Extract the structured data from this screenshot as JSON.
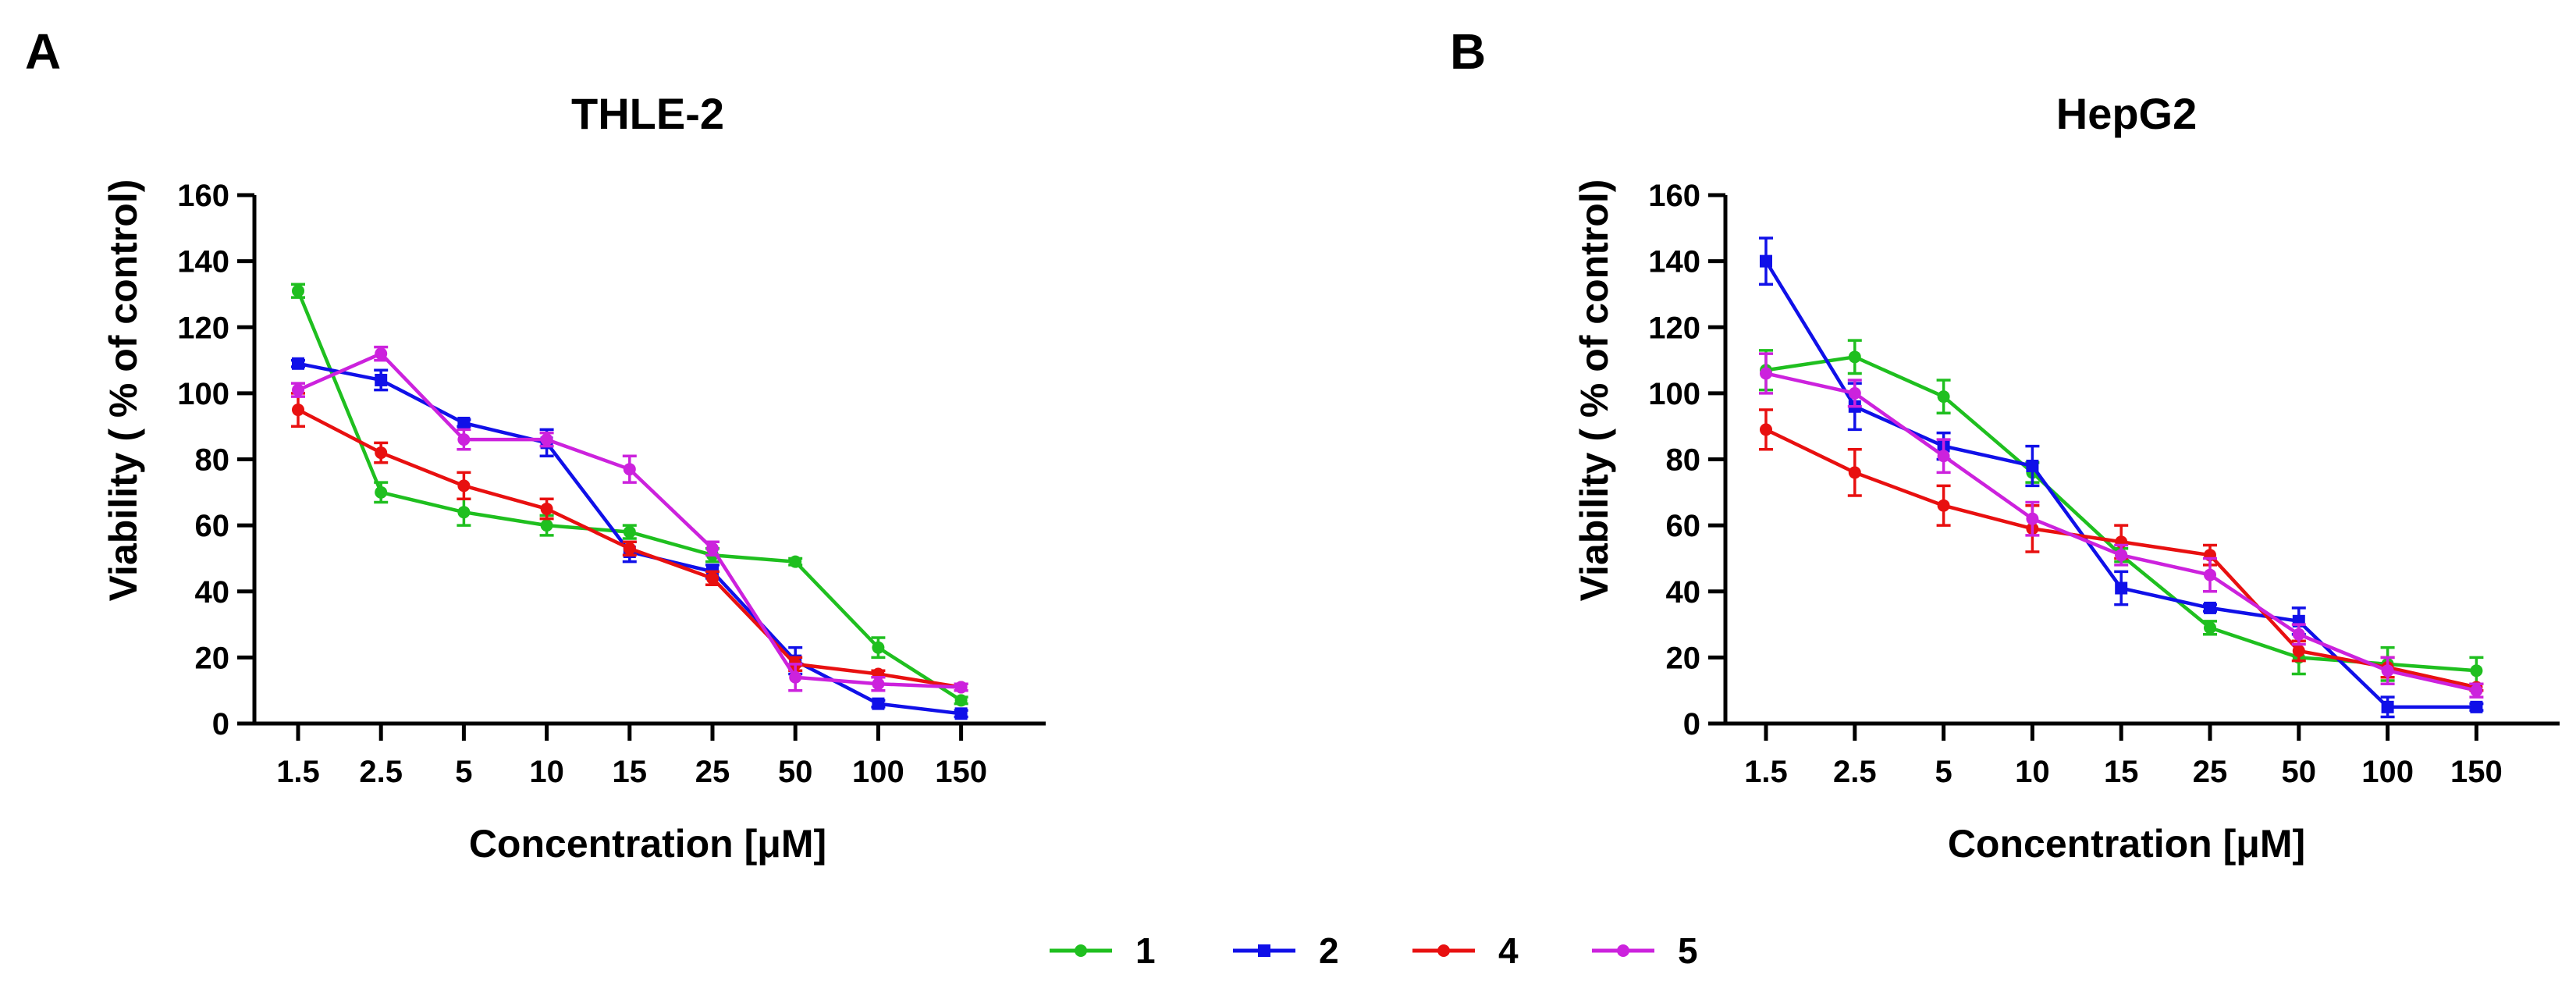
{
  "panels": [
    "A",
    "B"
  ],
  "legend": [
    {
      "label": "1",
      "color": "#1fbf1f",
      "marker": "circle"
    },
    {
      "label": "2",
      "color": "#1010e8",
      "marker": "square"
    },
    {
      "label": "4",
      "color": "#e81010",
      "marker": "circle"
    },
    {
      "label": "5",
      "color": "#cc22dd",
      "marker": "circle"
    }
  ],
  "chart_data": [
    {
      "type": "line",
      "title": "THLE-2",
      "xlabel": "Concentration [μM]",
      "ylabel": "Viability ( % of control)",
      "categories": [
        "1.5",
        "2.5",
        "5",
        "10",
        "15",
        "25",
        "50",
        "100",
        "150"
      ],
      "ylim": [
        0,
        160
      ],
      "yticks": [
        0,
        20,
        40,
        60,
        80,
        100,
        120,
        140,
        160
      ],
      "grid": false,
      "series": [
        {
          "name": "1",
          "color": "#1fbf1f",
          "values": [
            131,
            70,
            64,
            60,
            58,
            51,
            49,
            23,
            7
          ],
          "errors": [
            2,
            3,
            4,
            3,
            2,
            2,
            1,
            3,
            1
          ]
        },
        {
          "name": "2",
          "color": "#1010e8",
          "values": [
            109,
            104,
            91,
            85,
            52,
            46,
            19,
            6,
            3
          ],
          "errors": [
            1,
            3,
            1,
            4,
            3,
            2,
            4,
            1,
            1
          ]
        },
        {
          "name": "4",
          "color": "#e81010",
          "values": [
            95,
            82,
            72,
            65,
            53,
            44,
            18,
            15,
            11
          ],
          "errors": [
            5,
            3,
            4,
            3,
            2,
            2,
            2,
            1,
            1
          ]
        },
        {
          "name": "5",
          "color": "#cc22dd",
          "values": [
            101,
            112,
            86,
            86,
            77,
            53,
            14,
            12,
            11
          ],
          "errors": [
            2,
            2,
            3,
            2,
            4,
            2,
            4,
            2,
            1
          ]
        }
      ]
    },
    {
      "type": "line",
      "title": "HepG2",
      "xlabel": "Concentration [μM]",
      "ylabel": "Viability ( % of control)",
      "categories": [
        "1.5",
        "2.5",
        "5",
        "10",
        "15",
        "25",
        "50",
        "100",
        "150"
      ],
      "ylim": [
        0,
        160
      ],
      "yticks": [
        0,
        20,
        40,
        60,
        80,
        100,
        120,
        140,
        160
      ],
      "grid": false,
      "series": [
        {
          "name": "1",
          "color": "#1fbf1f",
          "values": [
            107,
            111,
            99,
            76,
            51,
            29,
            20,
            18,
            16
          ],
          "errors": [
            6,
            5,
            5,
            3,
            2,
            2,
            5,
            5,
            4
          ]
        },
        {
          "name": "2",
          "color": "#1010e8",
          "values": [
            140,
            96,
            84,
            78,
            41,
            35,
            31,
            5,
            5
          ],
          "errors": [
            7,
            7,
            4,
            6,
            5,
            1,
            4,
            3,
            1
          ]
        },
        {
          "name": "4",
          "color": "#e81010",
          "values": [
            89,
            76,
            66,
            59,
            55,
            51,
            22,
            17,
            11
          ],
          "errors": [
            6,
            7,
            6,
            7,
            5,
            3,
            3,
            3,
            1
          ]
        },
        {
          "name": "5",
          "color": "#cc22dd",
          "values": [
            106,
            100,
            81,
            62,
            51,
            45,
            27,
            16,
            10
          ],
          "errors": [
            6,
            4,
            5,
            5,
            3,
            5,
            3,
            4,
            2
          ]
        }
      ]
    }
  ]
}
